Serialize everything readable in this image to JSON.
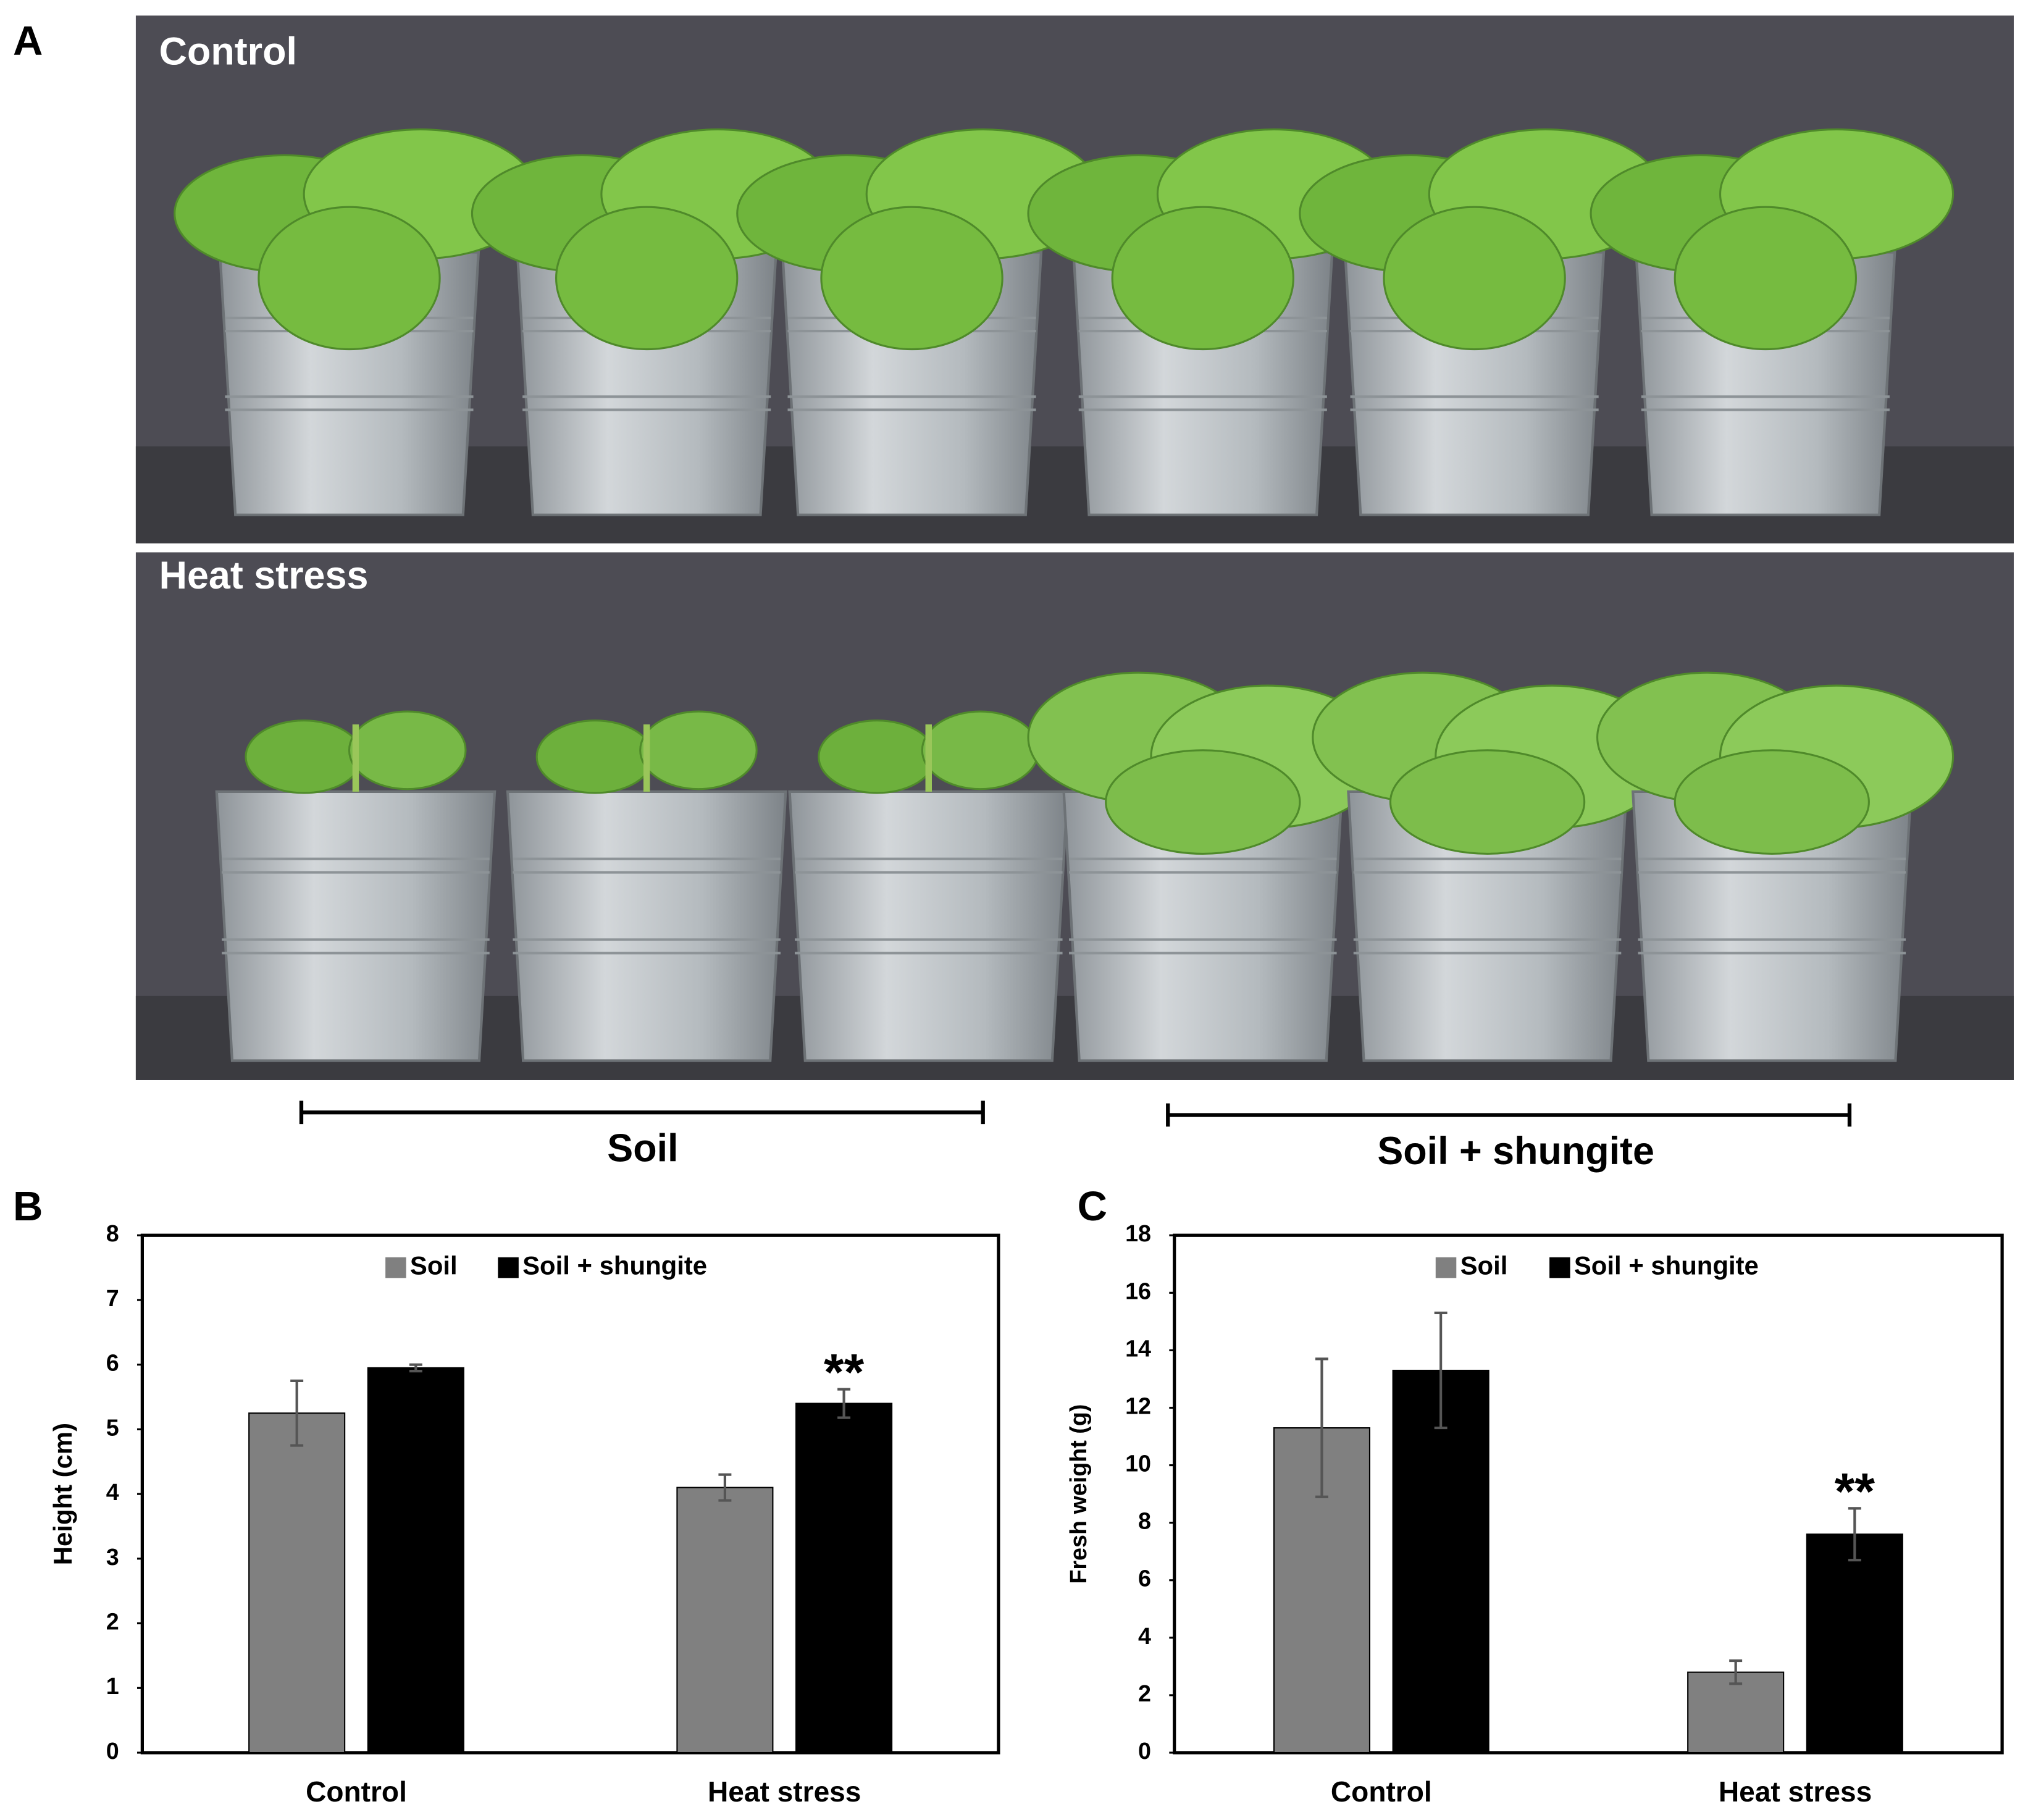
{
  "figure": {
    "panel_labels": [
      "A",
      "B",
      "C"
    ],
    "photo_labels": [
      "Control",
      "Heat stress"
    ],
    "group_labels": [
      "Soil",
      "Soil + shungite"
    ]
  },
  "chart_data": [
    {
      "type": "bar",
      "y_label": "Height (cm)",
      "categories": [
        "Control",
        "Heat stress"
      ],
      "series": [
        {
          "name": "Soil",
          "color": "#808080",
          "values": [
            5.25,
            4.1
          ],
          "errors": [
            0.5,
            0.2
          ]
        },
        {
          "name": "Soil + shungite",
          "color": "#000000",
          "values": [
            5.95,
            5.4
          ],
          "errors": [
            0.05,
            0.22
          ]
        }
      ],
      "ylim": [
        0,
        8
      ],
      "yticks": [
        0,
        1,
        2,
        3,
        4,
        5,
        6,
        7,
        8
      ],
      "legend": "top",
      "annotations": [
        {
          "text": "**",
          "x": "Heat stress",
          "series": "Soil + shungite"
        }
      ]
    },
    {
      "type": "bar",
      "y_label": "Fresh weight (g)",
      "categories": [
        "Control",
        "Heat stress"
      ],
      "series": [
        {
          "name": "Soil",
          "color": "#808080",
          "values": [
            11.3,
            2.8
          ],
          "errors": [
            2.4,
            0.4
          ]
        },
        {
          "name": "Soil + shungite",
          "color": "#000000",
          "values": [
            13.3,
            7.6
          ],
          "errors": [
            2.0,
            0.9
          ]
        }
      ],
      "ylim": [
        0,
        18
      ],
      "yticks": [
        0,
        2,
        4,
        6,
        8,
        10,
        12,
        14,
        16,
        18
      ],
      "legend": "top",
      "annotations": [
        {
          "text": "**",
          "x": "Heat stress",
          "series": "Soil + shungite"
        }
      ]
    }
  ]
}
